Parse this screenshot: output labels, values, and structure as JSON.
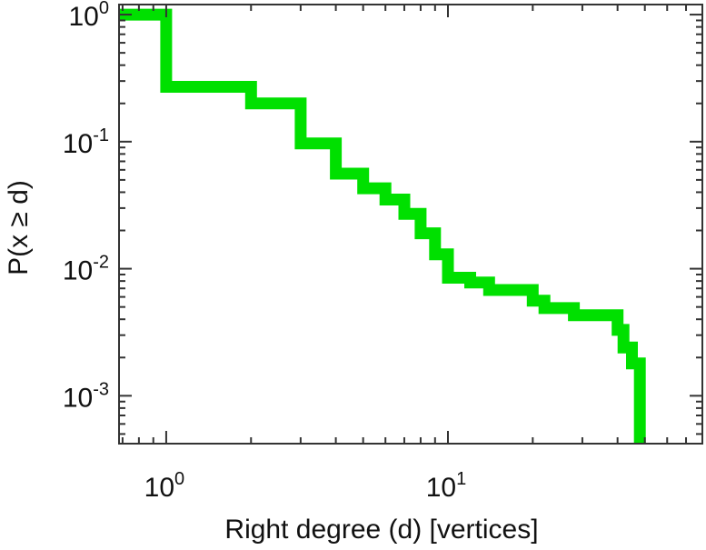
{
  "chart_data": {
    "type": "line",
    "title": "",
    "xlabel": "Right degree (d) [vertices]",
    "ylabel": "P(x ≥ d)",
    "x_scale": "log",
    "y_scale": "log",
    "xlim": [
      0.68,
      80
    ],
    "ylim": [
      0.00042,
      1.2
    ],
    "grid": false,
    "legend": "none",
    "x_tick_labels": [
      {
        "value": 1,
        "base": "10",
        "exp": "0"
      },
      {
        "value": 10,
        "base": "10",
        "exp": "1"
      }
    ],
    "y_tick_labels": [
      {
        "value": 1,
        "base": "10",
        "exp": "0"
      },
      {
        "value": 0.1,
        "base": "10",
        "exp": "-1"
      },
      {
        "value": 0.01,
        "base": "10",
        "exp": "-2"
      },
      {
        "value": 0.001,
        "base": "10",
        "exp": "-3"
      }
    ],
    "series": [
      {
        "color": "#00e000",
        "step": "post",
        "x": [
          0.68,
          1,
          2,
          3,
          4,
          5,
          6,
          7,
          8,
          9,
          10,
          12,
          14,
          20,
          22,
          28,
          40,
          42,
          45,
          48
        ],
        "y": [
          1.0,
          0.27,
          0.2,
          0.097,
          0.056,
          0.043,
          0.035,
          0.027,
          0.019,
          0.013,
          0.0085,
          0.0078,
          0.0068,
          0.0056,
          0.0049,
          0.0043,
          0.0033,
          0.0024,
          0.0018,
          0.001
        ],
        "x_end": 48,
        "y_end": 0.00042
      }
    ],
    "colors": {
      "frame": "#333333",
      "line": "#00e000"
    }
  }
}
